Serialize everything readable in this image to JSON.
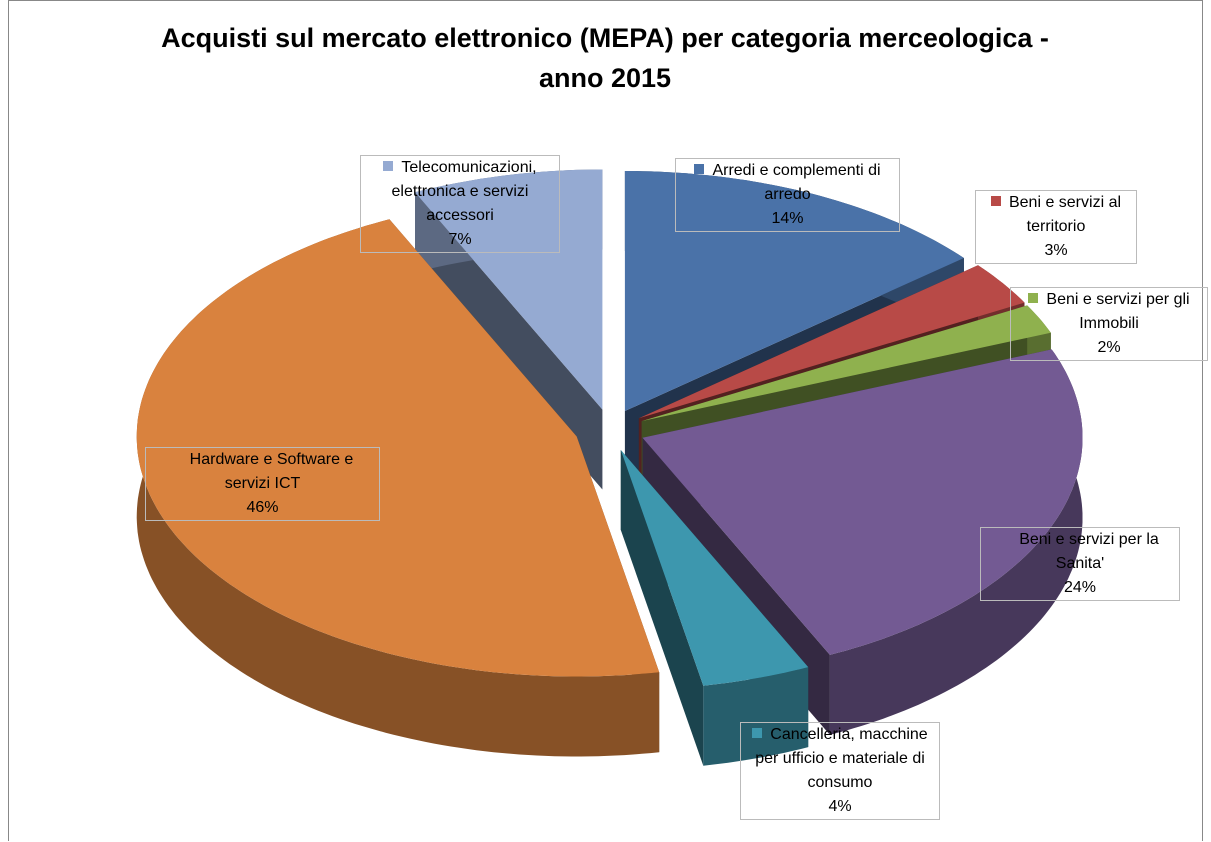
{
  "chart_data": {
    "type": "pie",
    "title": "Acquisti sul mercato elettronico (MEPA) per categoria merceologica - anno 2015",
    "categories": [
      "Arredi e complementi di arredo",
      "Beni e servizi al territorio",
      "Beni e servizi per gli Immobili",
      "Beni e servizi per la Sanita'",
      "Cancelleria, macchine per ufficio e materiale di consumo",
      "Hardware e Software e servizi ICT",
      "Telecomunicazioni, elettronica e servizi accessori"
    ],
    "values": [
      14,
      3,
      2,
      24,
      4,
      46,
      7
    ],
    "value_labels": [
      "14%",
      "3%",
      "2%",
      "24%",
      "4%",
      "46%",
      "7%"
    ],
    "colors": [
      "#4a72a8",
      "#b84a47",
      "#8fb14e",
      "#735a93",
      "#3d97ae",
      "#d9823e",
      "#95aad2"
    ]
  }
}
